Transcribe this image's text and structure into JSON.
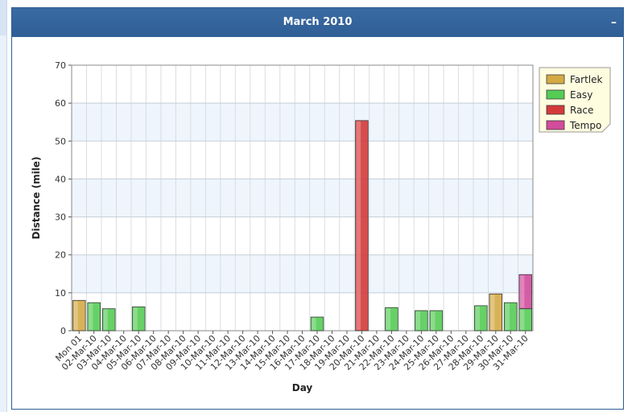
{
  "panel": {
    "title": "March 2010",
    "collapse_label": "–"
  },
  "chart_data": {
    "type": "bar",
    "stacked": true,
    "title": "March 2010",
    "xlabel": "Day",
    "ylabel": "Distance (mile)",
    "ylim": [
      0,
      70
    ],
    "yticks": [
      0,
      10,
      20,
      30,
      40,
      50,
      60,
      70
    ],
    "grid": true,
    "legend_position": "top-right",
    "categories": [
      "Mon 01",
      "02-Mar-10",
      "03-Mar-10",
      "04-Mar-10",
      "05-Mar-10",
      "06-Mar-10",
      "07-Mar-10",
      "08-Mar-10",
      "09-Mar-10",
      "10-Mar-10",
      "11-Mar-10",
      "12-Mar-10",
      "13-Mar-10",
      "14-Mar-10",
      "15-Mar-10",
      "16-Mar-10",
      "17-Mar-10",
      "18-Mar-10",
      "19-Mar-10",
      "20-Mar-10",
      "21-Mar-10",
      "22-Mar-10",
      "23-Mar-10",
      "24-Mar-10",
      "25-Mar-10",
      "26-Mar-10",
      "27-Mar-10",
      "28-Mar-10",
      "29-Mar-10",
      "30-Mar-10",
      "31-Mar-10"
    ],
    "series": [
      {
        "name": "Fartlek",
        "color": "#d4aa44",
        "values": [
          8,
          0,
          0,
          0,
          0,
          0,
          0,
          0,
          0,
          0,
          0,
          0,
          0,
          0,
          0,
          0,
          0,
          0,
          0,
          0,
          0,
          0,
          0,
          0,
          0,
          0,
          0,
          0,
          9.7,
          0,
          0
        ]
      },
      {
        "name": "Easy",
        "color": "#55cc55",
        "values": [
          0,
          7.4,
          5.8,
          0,
          6.3,
          0,
          0,
          0,
          0,
          0,
          0,
          0,
          0,
          0,
          0,
          0,
          3.6,
          0,
          0,
          0,
          0,
          6.1,
          0,
          5.3,
          5.3,
          0,
          0,
          6.6,
          0,
          7.4,
          5.8
        ]
      },
      {
        "name": "Race",
        "color": "#d43a3a",
        "values": [
          0,
          0,
          0,
          0,
          0,
          0,
          0,
          0,
          0,
          0,
          0,
          0,
          0,
          0,
          0,
          0,
          0,
          0,
          0,
          55.4,
          0,
          0,
          0,
          0,
          0,
          0,
          0,
          0,
          0,
          0,
          0
        ]
      },
      {
        "name": "Tempo",
        "color": "#d24c9c",
        "values": [
          0,
          0,
          0,
          0,
          0,
          0,
          0,
          0,
          0,
          0,
          0,
          0,
          0,
          0,
          0,
          0,
          0,
          0,
          0,
          0,
          0,
          0,
          0,
          0,
          0,
          0,
          0,
          0,
          0,
          0,
          9
        ]
      }
    ]
  }
}
